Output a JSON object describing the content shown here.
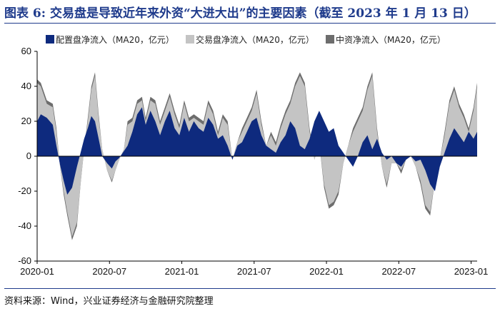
{
  "header": {
    "title": "图表 6:  交易盘是导致近年来外资“大进大出”的主要因素（截至 2023 年 1 月 13 日）"
  },
  "footer": {
    "source": "资料来源：Wind，兴业证券经济与金融研究院整理"
  },
  "colors": {
    "allocation": "#0e2a7e",
    "trading": "#c4c4c4",
    "intermediary": "#6d6d6d",
    "accent": "#1f3b8c"
  },
  "chart_data": {
    "type": "area",
    "title": "",
    "xlabel": "",
    "ylabel": "",
    "ylim": [
      -60,
      60
    ],
    "yticks": [
      -60,
      -40,
      -20,
      0,
      20,
      40,
      60
    ],
    "grid": false,
    "legend_position": "top",
    "x_tick_labels": [
      "2020-01",
      "2020-07",
      "2021-01",
      "2021-07",
      "2022-01",
      "2022-07",
      "2023-01"
    ],
    "x_tick_months": [
      0,
      6,
      12,
      18,
      24,
      30,
      36
    ],
    "x_range_months": [
      0,
      36.5
    ],
    "x_month_units": "months since 2020-01",
    "series": [
      {
        "name": "配置盘净流入（MA20，亿元）",
        "key": "allocation",
        "x": [
          0,
          0.3,
          0.8,
          1.3,
          1.6,
          1.9,
          2.2,
          2.5,
          2.9,
          3.3,
          3.6,
          3.9,
          4.2,
          4.5,
          4.8,
          5.1,
          5.4,
          5.8,
          6.2,
          6.5,
          6.8,
          7.2,
          7.5,
          7.9,
          8.3,
          8.7,
          9.0,
          9.4,
          9.8,
          10.2,
          10.6,
          11.0,
          11.4,
          11.8,
          12.2,
          12.6,
          13.0,
          13.4,
          13.8,
          14.2,
          14.6,
          15.0,
          15.4,
          15.8,
          16.2,
          16.6,
          17.0,
          17.4,
          17.8,
          18.2,
          18.6,
          19.0,
          19.4,
          19.8,
          20.2,
          20.6,
          21.0,
          21.4,
          21.8,
          22.2,
          22.6,
          23.0,
          23.4,
          23.8,
          24.2,
          24.6,
          25.0,
          25.4,
          25.8,
          26.2,
          26.6,
          27.0,
          27.4,
          27.8,
          28.2,
          28.6,
          29.0,
          29.4,
          29.8,
          30.2,
          30.6,
          31.0,
          31.4,
          31.8,
          32.2,
          32.6,
          33.0,
          33.4,
          33.8,
          34.2,
          34.6,
          35.0,
          35.4,
          35.8,
          36.2,
          36.5
        ],
        "values": [
          20,
          24,
          22,
          18,
          6,
          -5,
          -14,
          -22,
          -18,
          -6,
          2,
          10,
          16,
          23,
          20,
          10,
          0,
          -4,
          -7,
          -3,
          -1,
          3,
          6,
          14,
          24,
          28,
          18,
          26,
          20,
          12,
          20,
          26,
          16,
          12,
          22,
          14,
          20,
          16,
          14,
          22,
          18,
          10,
          12,
          6,
          -2,
          6,
          8,
          14,
          20,
          22,
          12,
          6,
          4,
          2,
          8,
          12,
          20,
          16,
          6,
          4,
          10,
          20,
          26,
          20,
          14,
          16,
          6,
          2,
          -2,
          -6,
          0,
          8,
          12,
          4,
          10,
          2,
          -2,
          0,
          -4,
          -6,
          -2,
          0,
          -3,
          -2,
          -8,
          -16,
          -20,
          -6,
          2,
          10,
          16,
          12,
          8,
          14,
          10,
          14
        ]
      },
      {
        "name": "交易盘净流入（MA20，亿元）",
        "key": "trading",
        "x": [
          0,
          0.3,
          0.8,
          1.3,
          1.6,
          1.9,
          2.2,
          2.5,
          2.9,
          3.3,
          3.6,
          3.9,
          4.2,
          4.5,
          4.8,
          5.1,
          5.4,
          5.8,
          6.2,
          6.5,
          6.8,
          7.2,
          7.5,
          7.9,
          8.3,
          8.7,
          9.0,
          9.4,
          9.8,
          10.2,
          10.6,
          11.0,
          11.4,
          11.8,
          12.2,
          12.6,
          13.0,
          13.4,
          13.8,
          14.2,
          14.6,
          15.0,
          15.4,
          15.8,
          16.2,
          16.6,
          17.0,
          17.4,
          17.8,
          18.2,
          18.6,
          19.0,
          19.4,
          19.8,
          20.2,
          20.6,
          21.0,
          21.4,
          21.8,
          22.2,
          22.6,
          23.0,
          23.4,
          23.8,
          24.2,
          24.6,
          25.0,
          25.4,
          25.8,
          26.2,
          26.6,
          27.0,
          27.4,
          27.8,
          28.2,
          28.6,
          29.0,
          29.4,
          29.8,
          30.2,
          30.6,
          31.0,
          31.4,
          31.8,
          32.2,
          32.6,
          33.0,
          33.4,
          33.8,
          34.2,
          34.6,
          35.0,
          35.4,
          35.8,
          36.2,
          36.5
        ],
        "values": [
          42,
          40,
          30,
          28,
          14,
          -6,
          -20,
          -32,
          -46,
          -38,
          -16,
          4,
          20,
          38,
          46,
          22,
          4,
          -8,
          -14,
          -8,
          -2,
          4,
          18,
          20,
          30,
          32,
          20,
          32,
          30,
          18,
          26,
          34,
          24,
          16,
          30,
          20,
          22,
          20,
          18,
          30,
          24,
          12,
          22,
          18,
          -2,
          8,
          14,
          20,
          26,
          36,
          18,
          6,
          12,
          6,
          16,
          24,
          30,
          40,
          46,
          40,
          14,
          -2,
          8,
          -16,
          -28,
          -26,
          -20,
          -4,
          6,
          14,
          20,
          26,
          38,
          46,
          14,
          -6,
          -16,
          -4,
          -4,
          -8,
          -2,
          0,
          -6,
          -14,
          -28,
          -32,
          -14,
          -2,
          12,
          30,
          38,
          28,
          22,
          14,
          26,
          40
        ]
      },
      {
        "name": "中资净流入（MA20，亿元）",
        "key": "intermediary",
        "x": [
          0,
          0.3,
          0.8,
          1.3,
          1.6,
          1.9,
          2.2,
          2.5,
          2.9,
          3.3,
          3.6,
          3.9,
          4.2,
          4.5,
          4.8,
          5.1,
          5.4,
          5.8,
          6.2,
          6.5,
          6.8,
          7.2,
          7.5,
          7.9,
          8.3,
          8.7,
          9.0,
          9.4,
          9.8,
          10.2,
          10.6,
          11.0,
          11.4,
          11.8,
          12.2,
          12.6,
          13.0,
          13.4,
          13.8,
          14.2,
          14.6,
          15.0,
          15.4,
          15.8,
          16.2,
          16.6,
          17.0,
          17.4,
          17.8,
          18.2,
          18.6,
          19.0,
          19.4,
          19.8,
          20.2,
          20.6,
          21.0,
          21.4,
          21.8,
          22.2,
          22.6,
          23.0,
          23.4,
          23.8,
          24.2,
          24.6,
          25.0,
          25.4,
          25.8,
          26.2,
          26.6,
          27.0,
          27.4,
          27.8,
          28.2,
          28.6,
          29.0,
          29.4,
          29.8,
          30.2,
          30.6,
          31.0,
          31.4,
          31.8,
          32.2,
          32.6,
          33.0,
          33.4,
          33.8,
          34.2,
          34.6,
          35.0,
          35.4,
          35.8,
          36.2,
          36.5
        ],
        "values": [
          44,
          42,
          32,
          30,
          16,
          -6,
          -22,
          -34,
          -48,
          -40,
          -16,
          4,
          22,
          40,
          48,
          24,
          4,
          -8,
          -15,
          -8,
          -2,
          4,
          20,
          22,
          32,
          34,
          22,
          34,
          32,
          20,
          28,
          36,
          26,
          18,
          32,
          22,
          24,
          22,
          20,
          32,
          26,
          14,
          24,
          20,
          -2,
          8,
          16,
          22,
          28,
          38,
          20,
          6,
          14,
          8,
          18,
          26,
          32,
          42,
          48,
          42,
          16,
          -2,
          8,
          -18,
          -30,
          -28,
          -22,
          -4,
          6,
          16,
          22,
          28,
          40,
          48,
          16,
          -6,
          -18,
          -4,
          -4,
          -10,
          -2,
          0,
          -6,
          -16,
          -30,
          -34,
          -14,
          -2,
          14,
          32,
          40,
          30,
          24,
          16,
          28,
          42
        ]
      }
    ]
  }
}
